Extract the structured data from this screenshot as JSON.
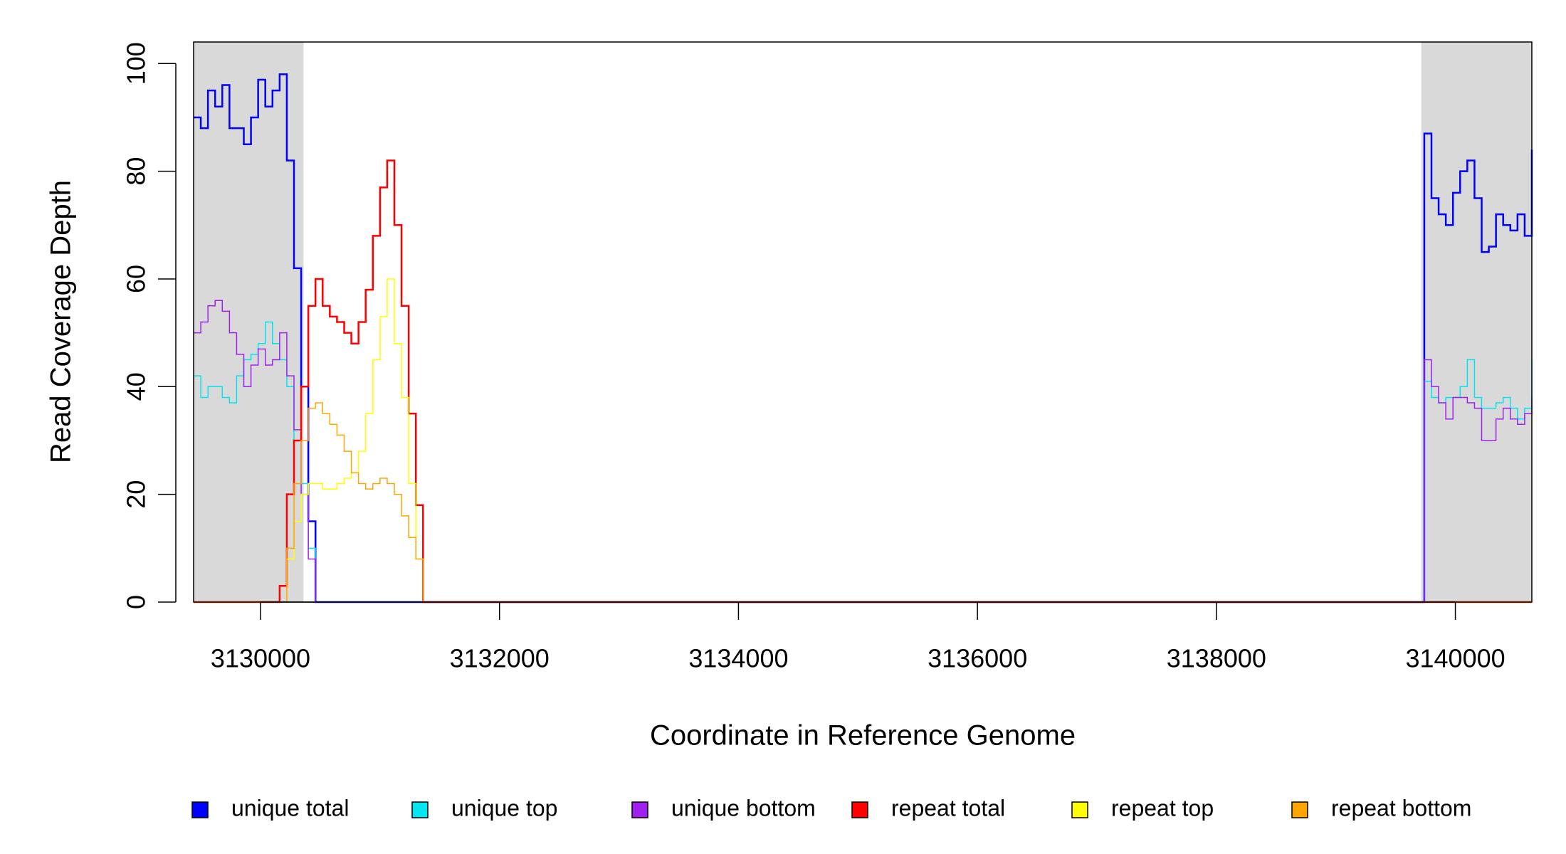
{
  "chart_data": {
    "type": "step",
    "xlabel": "Coordinate in Reference Genome",
    "ylabel": "Read Coverage Depth",
    "x": [
      3129440,
      3129500,
      3129560,
      3129620,
      3129680,
      3129740,
      3129800,
      3129860,
      3129920,
      3129980,
      3130040,
      3130100,
      3130160,
      3130220,
      3130280,
      3130340,
      3130400,
      3130460,
      3130520,
      3130580,
      3130640,
      3130700,
      3130760,
      3130820,
      3130880,
      3130940,
      3131000,
      3131060,
      3131120,
      3131180,
      3131240,
      3131300,
      3131360,
      3131420,
      3139680,
      3139740,
      3139800,
      3139860,
      3139920,
      3139980,
      3140040,
      3140100,
      3140160,
      3140220,
      3140280,
      3140340,
      3140400,
      3140460,
      3140520,
      3140580,
      3140640
    ],
    "series": [
      {
        "name": "unique total",
        "color": "#0000ff",
        "width": 2.5,
        "values": [
          90,
          88,
          95,
          92,
          96,
          88,
          88,
          85,
          90,
          97,
          92,
          95,
          98,
          82,
          62,
          40,
          15,
          0,
          0,
          0,
          0,
          0,
          0,
          0,
          0,
          0,
          0,
          0,
          0,
          0,
          0,
          0,
          0,
          0,
          0,
          87,
          75,
          72,
          70,
          76,
          80,
          82,
          75,
          65,
          66,
          72,
          70,
          69,
          72,
          68,
          84
        ]
      },
      {
        "name": "unique top",
        "color": "#00e5ee",
        "width": 1.5,
        "values": [
          42,
          38,
          40,
          40,
          38,
          37,
          42,
          45,
          46,
          48,
          52,
          48,
          45,
          40,
          30,
          22,
          10,
          0,
          0,
          0,
          0,
          0,
          0,
          0,
          0,
          0,
          0,
          0,
          0,
          0,
          0,
          0,
          0,
          0,
          0,
          41,
          38,
          37,
          38,
          38,
          40,
          45,
          38,
          36,
          36,
          37,
          38,
          36,
          34,
          36,
          45
        ]
      },
      {
        "name": "unique bottom",
        "color": "#a020f0",
        "width": 1.5,
        "values": [
          50,
          52,
          55,
          56,
          54,
          50,
          46,
          40,
          44,
          47,
          44,
          45,
          50,
          42,
          32,
          20,
          8,
          0,
          0,
          0,
          0,
          0,
          0,
          0,
          0,
          0,
          0,
          0,
          0,
          0,
          0,
          0,
          0,
          0,
          0,
          45,
          40,
          37,
          34,
          38,
          38,
          37,
          36,
          30,
          30,
          34,
          36,
          34,
          33,
          35,
          38
        ]
      },
      {
        "name": "repeat total",
        "color": "#ff0000",
        "width": 2.5,
        "values": [
          0,
          0,
          0,
          0,
          0,
          0,
          0,
          0,
          0,
          0,
          0,
          0,
          3,
          20,
          30,
          40,
          55,
          60,
          55,
          53,
          52,
          50,
          48,
          52,
          58,
          68,
          77,
          82,
          70,
          55,
          35,
          18,
          0,
          0,
          0,
          0,
          0,
          0,
          0,
          0,
          0,
          0,
          0,
          0,
          0,
          0,
          0,
          0,
          0,
          0,
          0
        ]
      },
      {
        "name": "repeat top",
        "color": "#ffff00",
        "width": 1.5,
        "values": [
          0,
          0,
          0,
          0,
          0,
          0,
          0,
          0,
          0,
          0,
          0,
          0,
          0,
          8,
          15,
          20,
          22,
          22,
          21,
          21,
          22,
          23,
          24,
          28,
          35,
          45,
          53,
          60,
          48,
          38,
          22,
          8,
          0,
          0,
          0,
          0,
          0,
          0,
          0,
          0,
          0,
          0,
          0,
          0,
          0,
          0,
          0,
          0,
          0,
          0,
          0
        ]
      },
      {
        "name": "repeat bottom",
        "color": "#ffa500",
        "width": 1.5,
        "values": [
          0,
          0,
          0,
          0,
          0,
          0,
          0,
          0,
          0,
          0,
          0,
          0,
          0,
          10,
          22,
          30,
          36,
          37,
          35,
          33,
          31,
          28,
          24,
          22,
          21,
          22,
          23,
          22,
          20,
          16,
          12,
          8,
          0,
          0,
          0,
          0,
          0,
          0,
          0,
          0,
          0,
          0,
          0,
          0,
          0,
          0,
          0,
          0,
          0,
          0,
          0
        ]
      }
    ],
    "xlim": [
      3129440,
      3140640
    ],
    "xticks": [
      3130000,
      3132000,
      3134000,
      3136000,
      3138000,
      3140000
    ],
    "ylim": [
      0,
      104
    ],
    "yticks": [
      0,
      20,
      40,
      60,
      80,
      100
    ],
    "shaded_regions": [
      [
        3129440,
        3130360
      ],
      [
        3139715,
        3140640
      ]
    ],
    "shade_color": "#d9d9d9",
    "legend": "bottom"
  }
}
